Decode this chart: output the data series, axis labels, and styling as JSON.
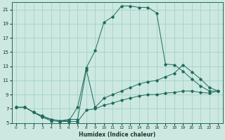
{
  "xlabel": "Humidex (Indice chaleur)",
  "xlim": [
    -0.5,
    23.5
  ],
  "ylim": [
    5,
    22
  ],
  "yticks": [
    5,
    7,
    9,
    11,
    13,
    15,
    17,
    19,
    21
  ],
  "xticks": [
    0,
    1,
    2,
    3,
    4,
    5,
    6,
    7,
    8,
    9,
    10,
    11,
    12,
    13,
    14,
    15,
    16,
    17,
    18,
    19,
    20,
    21,
    22,
    23
  ],
  "bg_color": "#cce8e0",
  "grid_color": "#9ecfc4",
  "line_color": "#1e6b5a",
  "curves": [
    {
      "x": [
        0,
        1,
        2,
        3,
        4,
        5,
        6,
        7,
        8,
        9,
        10,
        11,
        12,
        13,
        14,
        15,
        16,
        17,
        18,
        19,
        20,
        21,
        22,
        23
      ],
      "y": [
        7.2,
        7.2,
        6.5,
        6.0,
        5.5,
        5.3,
        5.3,
        7.2,
        12.8,
        15.2,
        19.2,
        20.0,
        21.5,
        21.5,
        21.3,
        21.3,
        20.5,
        13.3,
        13.2,
        12.3,
        11.2,
        10.2,
        9.5,
        9.5
      ]
    },
    {
      "x": [
        0,
        1,
        2,
        3,
        4,
        5,
        6,
        7,
        8,
        9,
        10,
        11,
        12,
        13,
        14,
        15,
        16,
        17,
        18,
        19,
        20,
        21,
        22,
        23
      ],
      "y": [
        7.2,
        7.2,
        6.5,
        5.8,
        5.5,
        5.3,
        5.5,
        5.5,
        12.5,
        7.2,
        8.5,
        9.0,
        9.5,
        10.0,
        10.5,
        10.8,
        11.0,
        11.5,
        12.0,
        13.2,
        12.2,
        11.2,
        10.0,
        9.5
      ]
    },
    {
      "x": [
        0,
        1,
        2,
        3,
        4,
        5,
        6,
        7,
        8,
        9,
        10,
        11,
        12,
        13,
        14,
        15,
        16,
        17,
        18,
        19,
        20,
        21,
        22,
        23
      ],
      "y": [
        7.2,
        7.2,
        6.5,
        5.8,
        5.3,
        5.2,
        5.2,
        5.2,
        6.8,
        7.0,
        7.5,
        7.8,
        8.2,
        8.5,
        8.8,
        9.0,
        9.0,
        9.2,
        9.3,
        9.5,
        9.5,
        9.3,
        9.2,
        9.5
      ]
    }
  ]
}
